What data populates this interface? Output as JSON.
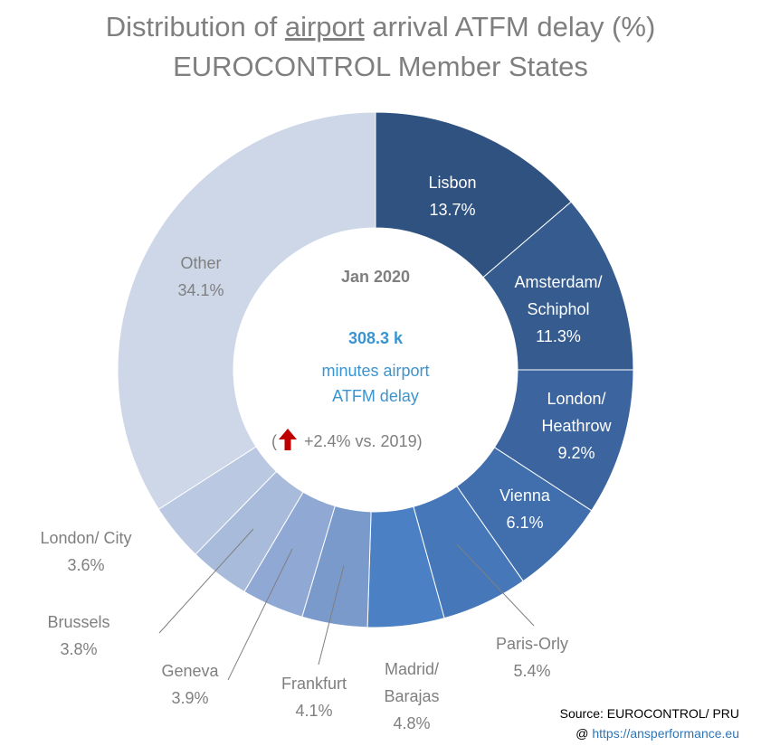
{
  "title": {
    "line1_prefix": "Distribution  of ",
    "line1_underlined": "airport",
    "line1_suffix": " arrival ATFM delay (%)",
    "line2": "EUROCONTROL Member States"
  },
  "center": {
    "period": "Jan 2020",
    "total": "308.3 k",
    "unit_line1": "minutes airport",
    "unit_line2": "ATFM delay",
    "change_open": "(",
    "change_text": "+2.4% vs. 2019)",
    "change_direction": "up",
    "change_color": "#c00000"
  },
  "colors": {
    "title": "#7f7f7f",
    "center_period": "#7f7f7f",
    "center_total": "#3a94d0",
    "label_inside": "#ffffff",
    "label_outside": "#7f7f7f"
  },
  "chart_data": {
    "type": "pie",
    "style": "donut",
    "unit": "%",
    "slices": [
      {
        "label": "Lisbon",
        "label_lines": [
          "Lisbon"
        ],
        "value": 13.7,
        "display": "13.7%",
        "color": "#2f5280"
      },
      {
        "label": "Amsterdam/ Schiphol",
        "label_lines": [
          "Amsterdam/",
          "Schiphol"
        ],
        "value": 11.3,
        "display": "11.3%",
        "color": "#355b8f"
      },
      {
        "label": "London/ Heathrow",
        "label_lines": [
          "London/",
          "Heathrow"
        ],
        "value": 9.2,
        "display": "9.2%",
        "color": "#3c659f"
      },
      {
        "label": "Vienna",
        "label_lines": [
          "Vienna"
        ],
        "value": 6.1,
        "display": "6.1%",
        "color": "#416fad"
      },
      {
        "label": "Paris-Orly",
        "label_lines": [
          "Paris-Orly"
        ],
        "value": 5.4,
        "display": "5.4%",
        "color": "#4677b9"
      },
      {
        "label": "Madrid/ Barajas",
        "label_lines": [
          "Madrid/",
          "Barajas"
        ],
        "value": 4.8,
        "display": "4.8%",
        "color": "#4b80c5"
      },
      {
        "label": "Frankfurt",
        "label_lines": [
          "Frankfurt"
        ],
        "value": 4.1,
        "display": "4.1%",
        "color": "#7a9acb"
      },
      {
        "label": "Geneva",
        "label_lines": [
          "Geneva"
        ],
        "value": 3.9,
        "display": "3.9%",
        "color": "#90a8d4"
      },
      {
        "label": "Brussels",
        "label_lines": [
          "Brussels"
        ],
        "value": 3.8,
        "display": "3.8%",
        "color": "#a8bbdb"
      },
      {
        "label": "London/ City",
        "label_lines": [
          "London/ City"
        ],
        "value": 3.6,
        "display": "3.6%",
        "color": "#bac8e1"
      },
      {
        "label": "Other",
        "label_lines": [
          "Other"
        ],
        "value": 34.1,
        "display": "34.1%",
        "color": "#cdd7e8"
      }
    ]
  },
  "source": {
    "line1": "Source:  EUROCONTROL/ PRU",
    "line2_prefix": "@ ",
    "link_text": "https://ansperformance.eu"
  }
}
